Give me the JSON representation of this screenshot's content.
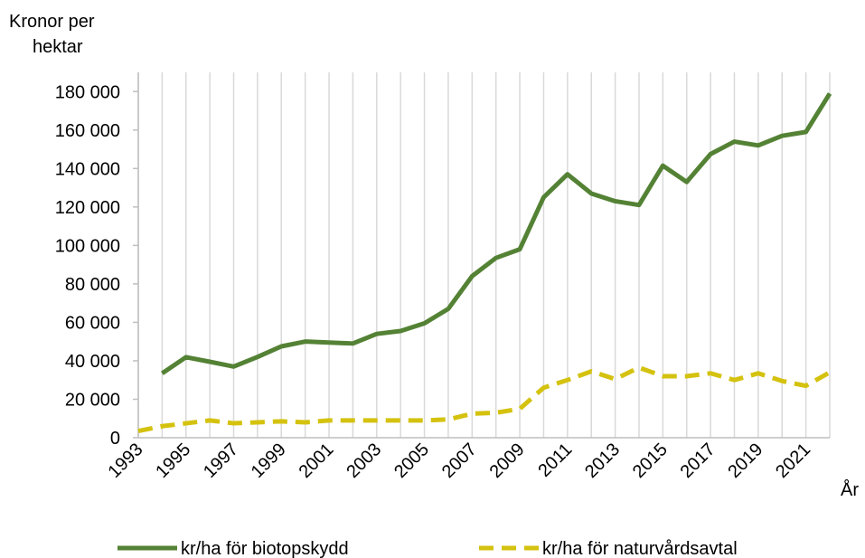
{
  "chart_data": {
    "type": "line",
    "ylabel": [
      "Kronor per",
      "hektar"
    ],
    "xlabel": "År",
    "x": [
      1993,
      1994,
      1995,
      1996,
      1997,
      1998,
      1999,
      2000,
      2001,
      2002,
      2003,
      2004,
      2005,
      2006,
      2007,
      2008,
      2009,
      2010,
      2011,
      2012,
      2013,
      2014,
      2015,
      2016,
      2017,
      2018,
      2019,
      2020,
      2021,
      2022
    ],
    "series": [
      {
        "name": "kr/ha för biotopskydd",
        "color": "#548235",
        "dashed": false,
        "values": [
          null,
          33500,
          41900,
          39500,
          37000,
          42000,
          47500,
          50000,
          49500,
          49000,
          54000,
          55500,
          59500,
          67000,
          84000,
          93500,
          98000,
          125000,
          137000,
          127000,
          123000,
          121000,
          141500,
          133000,
          147500,
          154000,
          152000,
          157000,
          159000,
          179000
        ]
      },
      {
        "name": "kr/ha för naturvårdsavtal",
        "color": "#d4c20f",
        "dashed": true,
        "values": [
          3500,
          6000,
          7500,
          9000,
          7500,
          8000,
          8500,
          8000,
          9000,
          9000,
          9000,
          9000,
          9000,
          9500,
          12500,
          13000,
          15000,
          26000,
          30000,
          34500,
          30500,
          36500,
          32000,
          32000,
          33500,
          30000,
          33500,
          29500,
          27000,
          34000
        ]
      }
    ],
    "xlim": [
      1993,
      2022
    ],
    "xticks": [
      1993,
      1995,
      1997,
      1999,
      2001,
      2003,
      2005,
      2007,
      2009,
      2011,
      2013,
      2015,
      2017,
      2019,
      2021
    ],
    "xgrid": [
      1993,
      1994,
      1995,
      1996,
      1997,
      1998,
      1999,
      2000,
      2001,
      2002,
      2003,
      2004,
      2005,
      2006,
      2007,
      2008,
      2009,
      2010,
      2011,
      2012,
      2013,
      2014,
      2015,
      2016,
      2017,
      2018,
      2019,
      2020,
      2021,
      2022
    ],
    "ylim": [
      0,
      190000
    ],
    "yticks": [
      0,
      {
        "value": 20000,
        "label": "20 000"
      },
      {
        "value": 40000,
        "label": "40 000"
      },
      {
        "value": 60000,
        "label": "60 000"
      },
      {
        "value": 80000,
        "label": "80 000"
      },
      {
        "value": 100000,
        "label": "100 000"
      },
      {
        "value": 120000,
        "label": "120 000"
      },
      {
        "value": 140000,
        "label": "140 000"
      },
      {
        "value": 160000,
        "label": "160 000"
      },
      {
        "value": 180000,
        "label": "180 000"
      }
    ],
    "legend": "bottom"
  }
}
